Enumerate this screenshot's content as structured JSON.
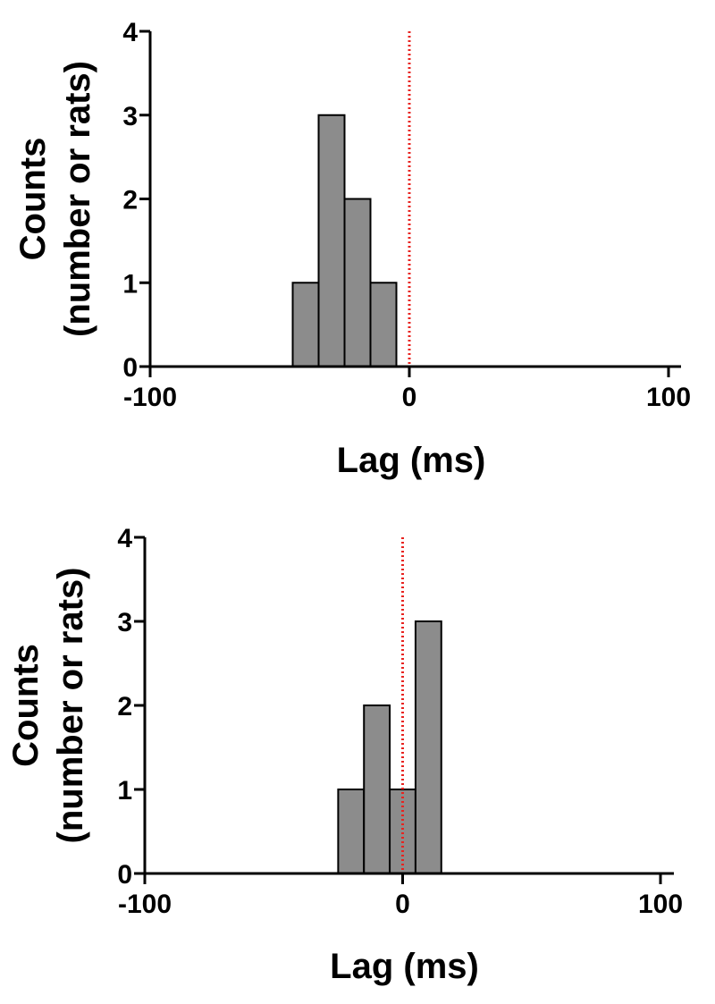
{
  "colors": {
    "bar_fill": "#8c8c8c",
    "bar_stroke": "#000000",
    "reference_line": "#e8231f",
    "axis": "#000000"
  },
  "chart_data": [
    {
      "type": "bar",
      "title": "",
      "xlabel": "Lag (ms)",
      "ylabel_line1": "Counts",
      "ylabel_line2": "(number or rats)",
      "xlim": [
        -100,
        100
      ],
      "ylim": [
        0,
        4
      ],
      "xticks": [
        -100,
        0,
        100
      ],
      "xtick_labels": [
        "-100",
        "0",
        "100"
      ],
      "yticks": [
        0,
        1,
        2,
        3,
        4
      ],
      "ytick_labels": [
        "0",
        "1",
        "2",
        "3",
        "4"
      ],
      "bin_width": 10,
      "bin_centers": [
        -40,
        -30,
        -20,
        -10
      ],
      "values": [
        1,
        3,
        2,
        1
      ],
      "reference_line_x": 0,
      "grid": false
    },
    {
      "type": "bar",
      "title": "",
      "xlabel": "Lag (ms)",
      "ylabel_line1": "Counts",
      "ylabel_line2": "(number or rats)",
      "xlim": [
        -100,
        100
      ],
      "ylim": [
        0,
        4
      ],
      "xticks": [
        -100,
        0,
        100
      ],
      "xtick_labels": [
        "-100",
        "0",
        "100"
      ],
      "yticks": [
        0,
        1,
        2,
        3,
        4
      ],
      "ytick_labels": [
        "0",
        "1",
        "2",
        "3",
        "4"
      ],
      "bin_width": 10,
      "bin_centers": [
        -20,
        -10,
        0,
        10
      ],
      "values": [
        1,
        2,
        1,
        3
      ],
      "reference_line_x": 0,
      "grid": false
    }
  ]
}
